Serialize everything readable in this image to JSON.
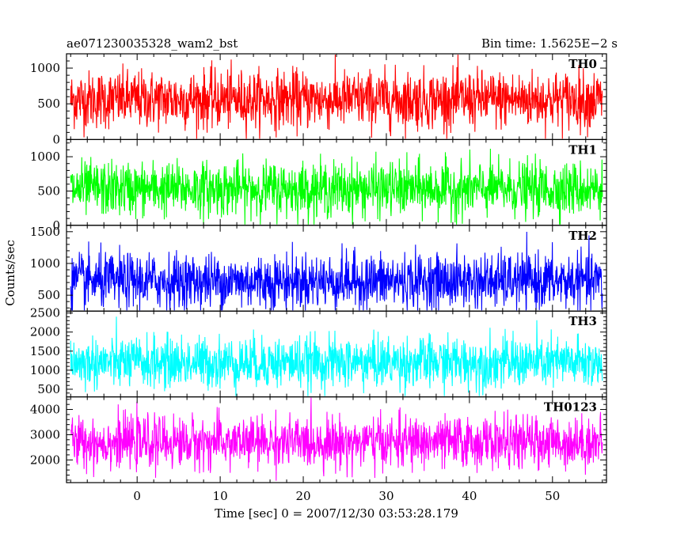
{
  "title_left": "ae071230035328_wam2_bst",
  "title_right": "Bin time: 1.5625E−2 s",
  "chart_data": {
    "type": "line",
    "title": "ae071230035328_wam2_bst",
    "subtitle": "Bin time: 1.5625E−2 s",
    "xlabel": "Time [sec] 0 = 2007/12/30 03:53:28.179",
    "ylabel": "Counts/sec",
    "xlim": [
      -8.5,
      56.5
    ],
    "data_xrange": [
      -8,
      56
    ],
    "x_ticks": [
      0,
      10,
      20,
      30,
      40,
      50
    ],
    "x_tick_labels": [
      "0",
      "10",
      "20",
      "30",
      "40",
      "50"
    ],
    "panels": [
      {
        "name": "TH0",
        "color": "#ff0000",
        "ylim": [
          0,
          1200
        ],
        "mean": 560,
        "spread": 480,
        "y_ticks": [
          0,
          500,
          1000
        ],
        "y_tick_labels": [
          "0",
          "500",
          "1000"
        ]
      },
      {
        "name": "TH1",
        "color": "#00ff00",
        "ylim": [
          0,
          1250
        ],
        "mean": 530,
        "spread": 470,
        "y_ticks": [
          0,
          500,
          1000
        ],
        "y_tick_labels": [
          "0",
          "500",
          "1000"
        ]
      },
      {
        "name": "TH2",
        "color": "#0000ff",
        "ylim": [
          250,
          1600
        ],
        "mean": 720,
        "spread": 520,
        "y_ticks": [
          500,
          1000,
          1500
        ],
        "y_tick_labels": [
          "500",
          "1000",
          "1500"
        ]
      },
      {
        "name": "TH3",
        "color": "#00ffff",
        "ylim": [
          300,
          2550
        ],
        "mean": 1200,
        "spread": 800,
        "y_ticks": [
          500,
          1000,
          1500,
          2000,
          2500
        ],
        "y_tick_labels": [
          "500",
          "1000",
          "1500",
          "2000",
          "2500"
        ]
      },
      {
        "name": "TH0123",
        "color": "#ff00ff",
        "ylim": [
          1100,
          4500
        ],
        "mean": 2700,
        "spread": 1200,
        "y_ticks": [
          2000,
          3000,
          4000
        ],
        "y_tick_labels": [
          "2000",
          "3000",
          "4000"
        ]
      }
    ],
    "grid": false,
    "legend": "none"
  }
}
